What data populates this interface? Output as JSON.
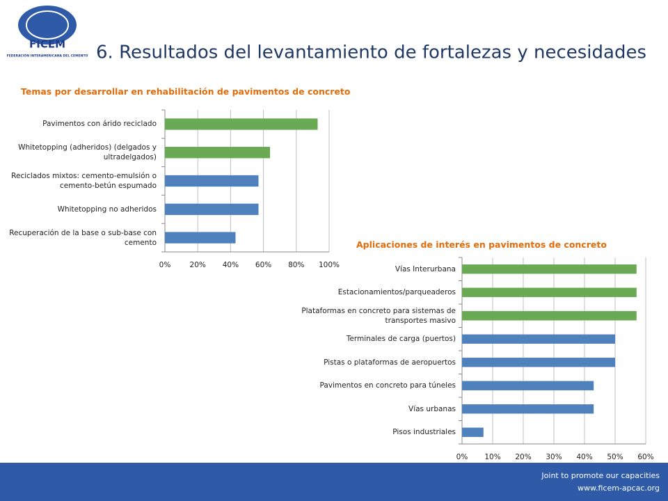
{
  "logo": {
    "name": "FICEM",
    "subtitle": "FEDERACIÓN INTERAMERICANA DEL CEMENTO"
  },
  "title": "6. Resultados del levantamiento de fortalezas y necesidades",
  "footer": {
    "tagline": "Joint  to promote our capacities",
    "url": "www.ficem-apcac.org"
  },
  "chart_data": [
    {
      "type": "hbar",
      "title": "Temas por desarrollar en rehabilitación de pavimentos de concreto",
      "categories": [
        "Pavimentos con árido reciclado",
        "Whitetopping (adheridos) (delgados y ultradelgados)",
        "Reciclados mixtos: cemento-emulsión o cemento-betún espumado",
        "Whitetopping no adheridos",
        "Recuperación de la base o sub-base con cemento"
      ],
      "values": [
        93,
        64,
        57,
        57,
        43
      ],
      "colors": [
        "#6aaa55",
        "#6aaa55",
        "#4f81bd",
        "#4f81bd",
        "#4f81bd"
      ],
      "xlim": [
        0,
        100
      ],
      "xticks": [
        {
          "value": 0,
          "label": "0%"
        },
        {
          "value": 20,
          "label": "20%"
        },
        {
          "value": 40,
          "label": "40%"
        },
        {
          "value": 60,
          "label": "60%"
        },
        {
          "value": 80,
          "label": "80%"
        },
        {
          "value": 100,
          "label": "100%"
        }
      ],
      "grid": true
    },
    {
      "type": "hbar",
      "title": "Aplicaciones de interés en pavimentos de concreto",
      "categories": [
        "Vías Interurbana",
        "Estacionamientos/parqueaderos",
        "Plataformas en concreto para sistemas de transportes masivo",
        "Terminales de carga (puertos)",
        "Pistas o plataformas de aeropuertos",
        "Pavimentos en concreto para túneles",
        "Vías urbanas",
        "Pisos industriales"
      ],
      "values": [
        57,
        57,
        57,
        50,
        50,
        43,
        43,
        7
      ],
      "colors": [
        "#6aaa55",
        "#6aaa55",
        "#6aaa55",
        "#4f81bd",
        "#4f81bd",
        "#4f81bd",
        "#4f81bd",
        "#4f81bd"
      ],
      "xlim": [
        0,
        60
      ],
      "xticks": [
        {
          "value": 0,
          "label": "0%"
        },
        {
          "value": 10,
          "label": "10%"
        },
        {
          "value": 20,
          "label": "20%"
        },
        {
          "value": 30,
          "label": "30%"
        },
        {
          "value": 40,
          "label": "40%"
        },
        {
          "value": 50,
          "label": "50%"
        },
        {
          "value": 60,
          "label": "60%"
        }
      ],
      "grid": true
    }
  ]
}
